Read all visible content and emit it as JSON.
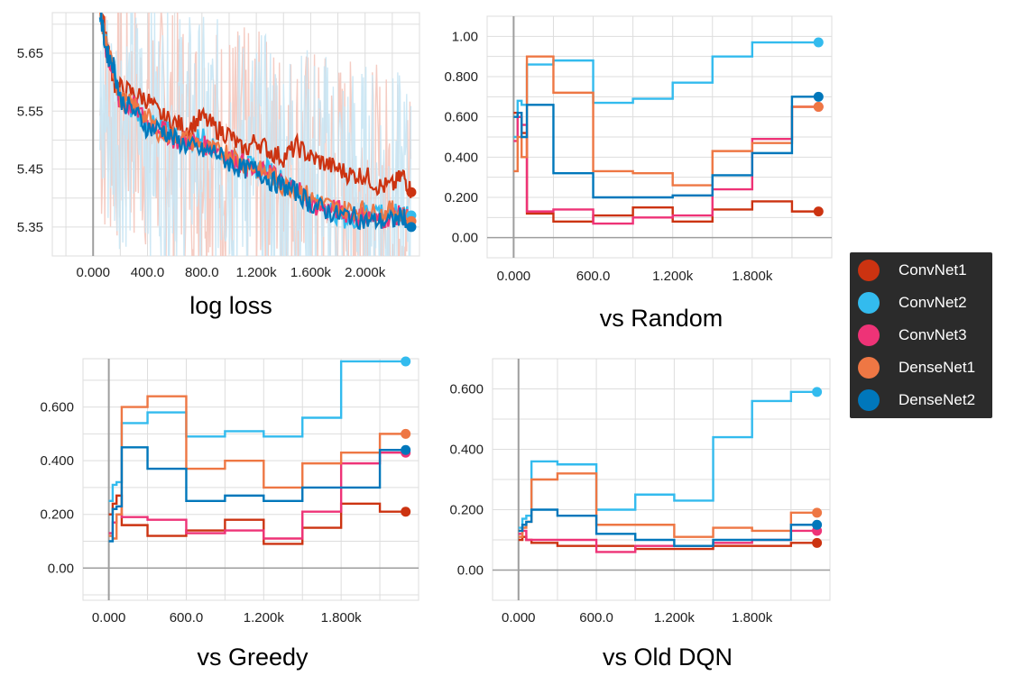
{
  "colors": {
    "ConvNet1": "#cc3311",
    "ConvNet2": "#33bbee",
    "ConvNet3": "#ee3377",
    "DenseNet1": "#ee7744",
    "DenseNet2": "#0077bb",
    "noise_red": "#f4c7bc",
    "noise_blue": "#c9e6f4",
    "grid": "#dddddd",
    "axis": "#9e9e9e"
  },
  "legend": {
    "items": [
      {
        "label": "ConvNet1",
        "color": "#cc3311"
      },
      {
        "label": "ConvNet2",
        "color": "#33bbee"
      },
      {
        "label": "ConvNet3",
        "color": "#ee3377"
      },
      {
        "label": "DenseNet1",
        "color": "#ee7744"
      },
      {
        "label": "DenseNet2",
        "color": "#0077bb"
      }
    ]
  },
  "chart_data": [
    {
      "type": "line",
      "title": "log loss",
      "xlim": [
        -300,
        2400
      ],
      "ylim": [
        5.3,
        5.72
      ],
      "xticks": [
        0,
        400,
        800,
        1200,
        1600,
        2000
      ],
      "xticklabels": [
        "0.000",
        "400.0",
        "800.0",
        "1.200k",
        "1.600k",
        "2.000k"
      ],
      "yticks": [
        5.35,
        5.45,
        5.55,
        5.65
      ],
      "yticklabels": [
        "5.35",
        "5.45",
        "5.55",
        "5.65"
      ],
      "grid": true,
      "series": [
        {
          "name": "ConvNet1",
          "x": [
            50,
            100,
            150,
            200,
            300,
            400,
            500,
            600,
            700,
            800,
            900,
            1000,
            1100,
            1200,
            1300,
            1400,
            1500,
            1600,
            1700,
            1800,
            1900,
            2000,
            2100,
            2200,
            2280,
            2340
          ],
          "y": [
            5.72,
            5.68,
            5.6,
            5.59,
            5.58,
            5.57,
            5.54,
            5.53,
            5.52,
            5.54,
            5.52,
            5.51,
            5.48,
            5.5,
            5.48,
            5.47,
            5.49,
            5.47,
            5.46,
            5.45,
            5.44,
            5.44,
            5.42,
            5.42,
            5.44,
            5.41
          ]
        },
        {
          "name": "ConvNet2",
          "x": [
            50,
            100,
            150,
            200,
            300,
            400,
            500,
            600,
            700,
            800,
            900,
            1000,
            1100,
            1200,
            1300,
            1400,
            1500,
            1600,
            1700,
            1800,
            1900,
            2000,
            2100,
            2200,
            2280,
            2340
          ],
          "y": [
            5.72,
            5.66,
            5.62,
            5.57,
            5.55,
            5.53,
            5.52,
            5.51,
            5.49,
            5.51,
            5.48,
            5.47,
            5.46,
            5.45,
            5.45,
            5.43,
            5.41,
            5.39,
            5.39,
            5.37,
            5.36,
            5.38,
            5.38,
            5.37,
            5.38,
            5.37
          ]
        },
        {
          "name": "ConvNet3",
          "x": [
            50,
            100,
            150,
            200,
            300,
            400,
            500,
            600,
            700,
            800,
            900,
            1000,
            1100,
            1200,
            1300,
            1400,
            1500,
            1600,
            1700,
            1800,
            1900,
            2000,
            2100,
            2200,
            2280,
            2340
          ],
          "y": [
            5.72,
            5.65,
            5.61,
            5.56,
            5.56,
            5.53,
            5.52,
            5.5,
            5.5,
            5.49,
            5.49,
            5.47,
            5.46,
            5.44,
            5.45,
            5.42,
            5.42,
            5.39,
            5.38,
            5.38,
            5.37,
            5.37,
            5.36,
            5.37,
            5.37,
            5.36
          ]
        },
        {
          "name": "DenseNet1",
          "x": [
            50,
            100,
            150,
            200,
            300,
            400,
            500,
            600,
            700,
            800,
            900,
            1000,
            1100,
            1200,
            1300,
            1400,
            1500,
            1600,
            1700,
            1800,
            1900,
            2000,
            2100,
            2200,
            2280,
            2340
          ],
          "y": [
            5.72,
            5.66,
            5.62,
            5.57,
            5.56,
            5.54,
            5.51,
            5.51,
            5.5,
            5.49,
            5.48,
            5.48,
            5.46,
            5.45,
            5.44,
            5.42,
            5.42,
            5.4,
            5.39,
            5.38,
            5.38,
            5.38,
            5.37,
            5.38,
            5.37,
            5.36
          ]
        },
        {
          "name": "DenseNet2",
          "x": [
            50,
            100,
            150,
            200,
            300,
            400,
            500,
            600,
            700,
            800,
            900,
            1000,
            1100,
            1200,
            1300,
            1400,
            1500,
            1600,
            1700,
            1800,
            1900,
            2000,
            2100,
            2200,
            2280,
            2340
          ],
          "y": [
            5.72,
            5.65,
            5.63,
            5.57,
            5.55,
            5.52,
            5.52,
            5.5,
            5.49,
            5.48,
            5.48,
            5.46,
            5.45,
            5.45,
            5.43,
            5.42,
            5.41,
            5.39,
            5.38,
            5.37,
            5.37,
            5.36,
            5.36,
            5.36,
            5.37,
            5.35
          ]
        }
      ]
    },
    {
      "type": "line",
      "title": "vs Random",
      "xlim": [
        -200,
        2400
      ],
      "ylim": [
        -0.1,
        1.1
      ],
      "xticks": [
        0,
        600,
        1200,
        1800
      ],
      "xticklabels": [
        "0.000",
        "600.0",
        "1.200k",
        "1.800k"
      ],
      "yticks": [
        0,
        0.2,
        0.4,
        0.6,
        0.8,
        1.0
      ],
      "yticklabels": [
        "0.00",
        "0.200",
        "0.400",
        "0.600",
        "0.800",
        "1.00"
      ],
      "grid": true,
      "series": [
        {
          "name": "ConvNet1",
          "x": [
            0,
            30,
            60,
            100,
            300,
            600,
            900,
            1200,
            1500,
            1800,
            2100,
            2300
          ],
          "y": [
            0.62,
            0.6,
            0.52,
            0.12,
            0.08,
            0.11,
            0.15,
            0.08,
            0.14,
            0.18,
            0.13,
            0.13
          ]
        },
        {
          "name": "ConvNet2",
          "x": [
            0,
            30,
            60,
            100,
            300,
            600,
            900,
            1200,
            1500,
            1800,
            2100,
            2300
          ],
          "y": [
            0.5,
            0.68,
            0.66,
            0.86,
            0.88,
            0.67,
            0.69,
            0.77,
            0.9,
            0.97,
            0.97,
            0.97
          ]
        },
        {
          "name": "ConvNet3",
          "x": [
            0,
            30,
            60,
            100,
            300,
            600,
            900,
            1200,
            1500,
            1800,
            2100,
            2300
          ],
          "y": [
            0.48,
            0.6,
            0.56,
            0.13,
            0.14,
            0.07,
            0.1,
            0.11,
            0.24,
            0.49,
            0.65,
            0.65
          ]
        },
        {
          "name": "DenseNet1",
          "x": [
            0,
            30,
            60,
            100,
            300,
            600,
            900,
            1200,
            1500,
            1800,
            2100,
            2300
          ],
          "y": [
            0.33,
            0.5,
            0.4,
            0.9,
            0.72,
            0.33,
            0.32,
            0.26,
            0.43,
            0.47,
            0.65,
            0.65
          ]
        },
        {
          "name": "DenseNet2",
          "x": [
            0,
            30,
            60,
            100,
            300,
            600,
            900,
            1200,
            1500,
            1800,
            2100,
            2300
          ],
          "y": [
            0.6,
            0.62,
            0.5,
            0.66,
            0.32,
            0.2,
            0.2,
            0.21,
            0.31,
            0.42,
            0.7,
            0.7
          ]
        }
      ]
    },
    {
      "type": "line",
      "title": "vs Greedy",
      "xlim": [
        -200,
        2400
      ],
      "ylim": [
        -0.12,
        0.78
      ],
      "xticks": [
        0,
        600,
        1200,
        1800
      ],
      "xticklabels": [
        "0.000",
        "600.0",
        "1.200k",
        "1.800k"
      ],
      "yticks": [
        0,
        0.2,
        0.4,
        0.6
      ],
      "yticklabels": [
        "0.00",
        "0.200",
        "0.400",
        "0.600"
      ],
      "grid": true,
      "series": [
        {
          "name": "ConvNet1",
          "x": [
            0,
            30,
            60,
            100,
            300,
            600,
            900,
            1200,
            1500,
            1800,
            2100,
            2300
          ],
          "y": [
            0.2,
            0.24,
            0.27,
            0.16,
            0.12,
            0.14,
            0.18,
            0.09,
            0.15,
            0.24,
            0.21,
            0.21
          ]
        },
        {
          "name": "ConvNet2",
          "x": [
            0,
            30,
            60,
            100,
            300,
            600,
            900,
            1200,
            1500,
            1800,
            2100,
            2300
          ],
          "y": [
            0.25,
            0.31,
            0.32,
            0.54,
            0.58,
            0.49,
            0.51,
            0.49,
            0.56,
            0.77,
            0.77,
            0.77
          ]
        },
        {
          "name": "ConvNet3",
          "x": [
            0,
            30,
            60,
            100,
            300,
            600,
            900,
            1200,
            1500,
            1800,
            2100,
            2300
          ],
          "y": [
            0.13,
            0.17,
            0.2,
            0.19,
            0.18,
            0.13,
            0.14,
            0.11,
            0.21,
            0.39,
            0.43,
            0.43
          ]
        },
        {
          "name": "DenseNet1",
          "x": [
            0,
            30,
            60,
            100,
            300,
            600,
            900,
            1200,
            1500,
            1800,
            2100,
            2300
          ],
          "y": [
            0.12,
            0.11,
            0.2,
            0.6,
            0.64,
            0.37,
            0.4,
            0.3,
            0.39,
            0.43,
            0.5,
            0.5
          ]
        },
        {
          "name": "DenseNet2",
          "x": [
            0,
            30,
            60,
            100,
            300,
            600,
            900,
            1200,
            1500,
            1800,
            2100,
            2300
          ],
          "y": [
            0.1,
            0.22,
            0.23,
            0.45,
            0.37,
            0.25,
            0.27,
            0.25,
            0.3,
            0.3,
            0.44,
            0.44
          ]
        }
      ]
    },
    {
      "type": "line",
      "title": "vs Old DQN",
      "xlim": [
        -200,
        2400
      ],
      "ylim": [
        -0.1,
        0.7
      ],
      "xticks": [
        0,
        600,
        1200,
        1800
      ],
      "xticklabels": [
        "0.000",
        "600.0",
        "1.200k",
        "1.800k"
      ],
      "yticks": [
        0,
        0.2,
        0.4,
        0.6
      ],
      "yticklabels": [
        "0.00",
        "0.200",
        "0.400",
        "0.600"
      ],
      "grid": true,
      "series": [
        {
          "name": "ConvNet1",
          "x": [
            0,
            30,
            60,
            100,
            300,
            600,
            900,
            1200,
            1500,
            1800,
            2100,
            2300
          ],
          "y": [
            0.1,
            0.11,
            0.1,
            0.09,
            0.08,
            0.08,
            0.07,
            0.07,
            0.08,
            0.08,
            0.09,
            0.09
          ]
        },
        {
          "name": "ConvNet2",
          "x": [
            0,
            30,
            60,
            100,
            300,
            600,
            900,
            1200,
            1500,
            1800,
            2100,
            2300
          ],
          "y": [
            0.14,
            0.17,
            0.18,
            0.36,
            0.35,
            0.2,
            0.25,
            0.23,
            0.44,
            0.56,
            0.59,
            0.59
          ]
        },
        {
          "name": "ConvNet3",
          "x": [
            0,
            30,
            60,
            100,
            300,
            600,
            900,
            1200,
            1500,
            1800,
            2100,
            2300
          ],
          "y": [
            0.12,
            0.13,
            0.1,
            0.1,
            0.1,
            0.06,
            0.08,
            0.08,
            0.09,
            0.1,
            0.13,
            0.13
          ]
        },
        {
          "name": "DenseNet1",
          "x": [
            0,
            30,
            60,
            100,
            300,
            600,
            900,
            1200,
            1500,
            1800,
            2100,
            2300
          ],
          "y": [
            0.11,
            0.14,
            0.16,
            0.3,
            0.32,
            0.15,
            0.15,
            0.11,
            0.14,
            0.13,
            0.19,
            0.19
          ]
        },
        {
          "name": "DenseNet2",
          "x": [
            0,
            30,
            60,
            100,
            300,
            600,
            900,
            1200,
            1500,
            1800,
            2100,
            2300
          ],
          "y": [
            0.13,
            0.15,
            0.16,
            0.2,
            0.18,
            0.12,
            0.1,
            0.08,
            0.1,
            0.1,
            0.15,
            0.15
          ]
        }
      ]
    }
  ]
}
